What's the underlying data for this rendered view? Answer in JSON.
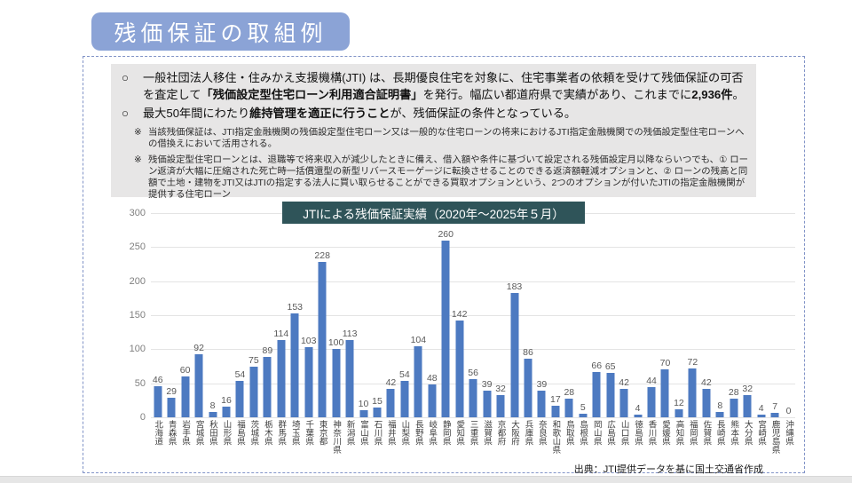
{
  "page": {
    "title": "残価保証の取組例",
    "source_note": "出典：JTI提供データを基に国土交通省作成"
  },
  "info_box": {
    "bullets": [
      {
        "marker": "○",
        "segments": [
          {
            "text": "一般社団法人移住・住みかえ支援機構(JTI) は、長期優良住宅を対象に、住宅事業者の依頼を受けて残価保証の可否を査定して",
            "bold": false
          },
          {
            "text": "「残価設定型住宅ローン利用適合証明書」",
            "bold": true
          },
          {
            "text": "を発行。幅広い都道府県で実績があり、これまでに",
            "bold": false
          },
          {
            "text": "2,936件",
            "bold": true
          },
          {
            "text": "。",
            "bold": false
          }
        ]
      },
      {
        "marker": "○",
        "segments": [
          {
            "text": "最大50年間にわたり",
            "bold": false
          },
          {
            "text": "維持管理を適正に行うこと",
            "bold": true
          },
          {
            "text": "が、残価保証の条件となっている。",
            "bold": false
          }
        ]
      }
    ],
    "notes": [
      {
        "marker": "※",
        "text": "当該残価保証は、JTI指定金融機関の残価設定型住宅ローン又は一般的な住宅ローンの将来におけるJTI指定金融機関での残価設定型住宅ローンへの借換えにおいて活用される。"
      },
      {
        "marker": "※",
        "text": "残価設定型住宅ローンとは、退職等で将来収入が減少したときに備え、借入額や条件に基づいて設定される残価設定月以降ならいつでも、① ローン返済が大幅に圧縮された死亡時一括償還型の新型リバースモーゲージに転換させることのできる返済額軽減オプションと、② ローンの残高と同額で土地・建物をJTI又はJTIの指定する法人に買い取らせることができる買取オプションという、2つのオプションが付いたJTIの指定金融機関が提供する住宅ローン"
      }
    ]
  },
  "chart_data": {
    "type": "bar",
    "title": "JTIによる残価保証実績（2020年～2025年５月）",
    "categories": [
      "北海道",
      "青森県",
      "岩手県",
      "宮城県",
      "秋田県",
      "山形県",
      "福島県",
      "茨城県",
      "栃木県",
      "群馬県",
      "埼玉県",
      "千葉県",
      "東京都",
      "神奈川県",
      "新潟県",
      "富山県",
      "石川県",
      "福井県",
      "山梨県",
      "長野県",
      "岐阜県",
      "静岡県",
      "愛知県",
      "三重県",
      "滋賀県",
      "京都府",
      "大阪府",
      "兵庫県",
      "奈良県",
      "和歌山県",
      "鳥取県",
      "島根県",
      "岡山県",
      "広島県",
      "山口県",
      "徳島県",
      "香川県",
      "愛媛県",
      "高知県",
      "福岡県",
      "佐賀県",
      "長崎県",
      "熊本県",
      "大分県",
      "宮崎県",
      "鹿児島県",
      "沖縄県"
    ],
    "values": [
      46,
      29,
      60,
      92,
      8,
      16,
      54,
      75,
      89,
      114,
      153,
      103,
      228,
      100,
      113,
      10,
      15,
      42,
      54,
      104,
      48,
      260,
      142,
      56,
      39,
      32,
      183,
      86,
      39,
      17,
      28,
      5,
      66,
      65,
      42,
      4,
      44,
      70,
      12,
      72,
      42,
      8,
      28,
      32,
      4,
      7,
      0
    ],
    "xlabel": "",
    "ylabel": "",
    "ylim": [
      0,
      300
    ],
    "yticks": [
      0,
      50,
      100,
      150,
      200,
      250,
      300
    ],
    "grid": true,
    "legend": false,
    "data_labels": true,
    "bar_color": "#4d7ac1",
    "data_label_color": "#595959"
  },
  "colors": {
    "banner_bg": "#8ba3d6",
    "banner_text": "#ffffff",
    "info_box_bg": "#e7e6e6",
    "chart_title_bg": "#2f5459",
    "chart_title_text": "#ffffff",
    "outer_border": "#8193c7",
    "bar_color": "#4d7ac1",
    "bottom_strip": "#e6e6e6"
  }
}
